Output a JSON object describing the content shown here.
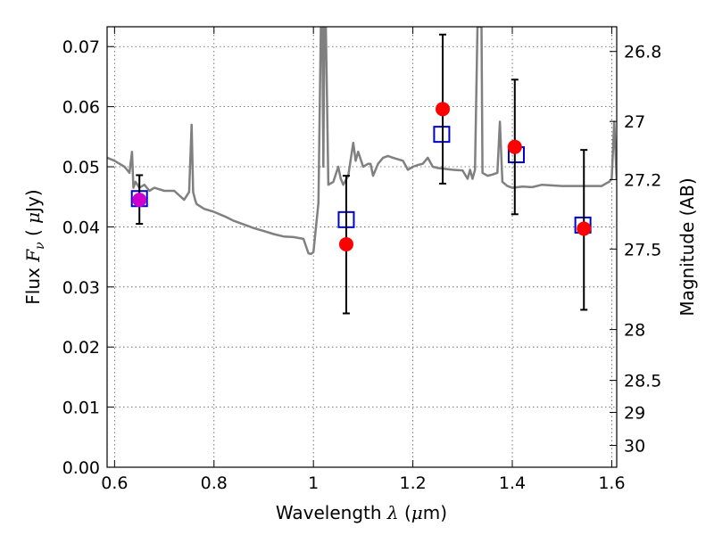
{
  "chart_data": {
    "type": "scatter",
    "title": "",
    "xlabel": {
      "prefix": "Wavelength",
      "symbol": "λ",
      "unit_open": "(",
      "unit_mu": "μ",
      "unit_rest": "m)"
    },
    "ylabel": {
      "prefix": "Flux",
      "symbol": "F",
      "sub": "ν",
      "unit_open": "(",
      "unit_mu": "μ",
      "unit_rest": "Jy)"
    },
    "y2label": "Magnitude (AB)",
    "xlim": [
      0.585,
      1.61
    ],
    "ylim": [
      0.0,
      0.0733
    ],
    "grid": true,
    "x_ticks": [
      0.6,
      0.8,
      1.0,
      1.2,
      1.4,
      1.6
    ],
    "x_tick_labels": [
      "0.6",
      "0.8",
      "1",
      "1.2",
      "1.4",
      "1.6"
    ],
    "y_ticks": [
      0.0,
      0.01,
      0.02,
      0.03,
      0.04,
      0.05,
      0.06,
      0.07
    ],
    "y_tick_labels": [
      "0.00",
      "0.01",
      "0.02",
      "0.03",
      "0.04",
      "0.05",
      "0.06",
      "0.07"
    ],
    "mag_ticks": [
      26.8,
      27.0,
      27.2,
      27.5,
      28.0,
      28.5,
      29.0,
      30.0
    ],
    "mag_tick_labels": [
      "26.8",
      "27",
      "27.2",
      "27.5",
      "28",
      "28.5",
      "29",
      "30"
    ],
    "colors": {
      "spectrum": "#808080",
      "observed": "#ff0000",
      "model_box": "#0000cc",
      "overlap": "#cc00cc",
      "errorbar": "#000000"
    },
    "spectrum": {
      "name": "",
      "x": [
        0.585,
        0.6,
        0.61,
        0.62,
        0.63,
        0.635,
        0.638,
        0.642,
        0.65,
        0.66,
        0.67,
        0.68,
        0.7,
        0.72,
        0.74,
        0.75,
        0.755,
        0.758,
        0.762,
        0.765,
        0.78,
        0.8,
        0.82,
        0.84,
        0.86,
        0.88,
        0.9,
        0.92,
        0.94,
        0.96,
        0.98,
        0.99,
        0.995,
        1.0,
        1.01,
        1.015,
        1.018,
        1.02,
        1.022,
        1.025,
        1.03,
        1.04,
        1.05,
        1.055,
        1.06,
        1.07,
        1.08,
        1.085,
        1.09,
        1.1,
        1.11,
        1.115,
        1.12,
        1.13,
        1.14,
        1.15,
        1.16,
        1.18,
        1.19,
        1.2,
        1.21,
        1.22,
        1.23,
        1.24,
        1.25,
        1.26,
        1.28,
        1.3,
        1.31,
        1.315,
        1.32,
        1.325,
        1.33,
        1.335,
        1.338,
        1.34,
        1.35,
        1.36,
        1.37,
        1.375,
        1.38,
        1.39,
        1.4,
        1.42,
        1.44,
        1.46,
        1.5,
        1.54,
        1.58,
        1.59,
        1.595,
        1.6,
        1.605,
        1.61
      ],
      "y": [
        0.0515,
        0.051,
        0.0505,
        0.05,
        0.049,
        0.0525,
        0.0465,
        0.0475,
        0.0465,
        0.047,
        0.046,
        0.0465,
        0.046,
        0.046,
        0.0445,
        0.0458,
        0.057,
        0.0458,
        0.0445,
        0.0438,
        0.043,
        0.0425,
        0.0418,
        0.041,
        0.0404,
        0.0398,
        0.0393,
        0.0388,
        0.0384,
        0.0383,
        0.038,
        0.0356,
        0.0355,
        0.0358,
        0.044,
        0.0733,
        0.0733,
        0.05,
        0.0733,
        0.0733,
        0.047,
        0.0475,
        0.05,
        0.048,
        0.047,
        0.0485,
        0.054,
        0.051,
        0.0525,
        0.05,
        0.0505,
        0.0505,
        0.0485,
        0.0505,
        0.0515,
        0.0518,
        0.0515,
        0.051,
        0.0495,
        0.05,
        0.0503,
        0.0505,
        0.0515,
        0.05,
        0.0498,
        0.0497,
        0.0495,
        0.0494,
        0.048,
        0.0495,
        0.048,
        0.0495,
        0.0733,
        0.0733,
        0.0733,
        0.049,
        0.0485,
        0.0487,
        0.049,
        0.0575,
        0.0475,
        0.0468,
        0.0465,
        0.0467,
        0.0466,
        0.047,
        0.0468,
        0.0468,
        0.0468,
        0.0473,
        0.0475,
        0.048,
        0.0575,
        0.0478
      ]
    },
    "observed": [
      {
        "x": 0.65,
        "y": 0.0445,
        "yerr_low": 0.0405,
        "yerr_high": 0.0486
      },
      {
        "x": 1.066,
        "y": 0.0371,
        "yerr_low": 0.0256,
        "yerr_high": 0.0485
      },
      {
        "x": 1.26,
        "y": 0.0596,
        "yerr_low": 0.0472,
        "yerr_high": 0.072
      },
      {
        "x": 1.405,
        "y": 0.0533,
        "yerr_low": 0.0421,
        "yerr_high": 0.0645
      },
      {
        "x": 1.544,
        "y": 0.0397,
        "yerr_low": 0.0262,
        "yerr_high": 0.0528
      }
    ],
    "model": [
      {
        "x": 0.65,
        "y": 0.0447
      },
      {
        "x": 1.066,
        "y": 0.0412
      },
      {
        "x": 1.258,
        "y": 0.0554
      },
      {
        "x": 1.408,
        "y": 0.052
      },
      {
        "x": 1.542,
        "y": 0.0403
      }
    ]
  }
}
